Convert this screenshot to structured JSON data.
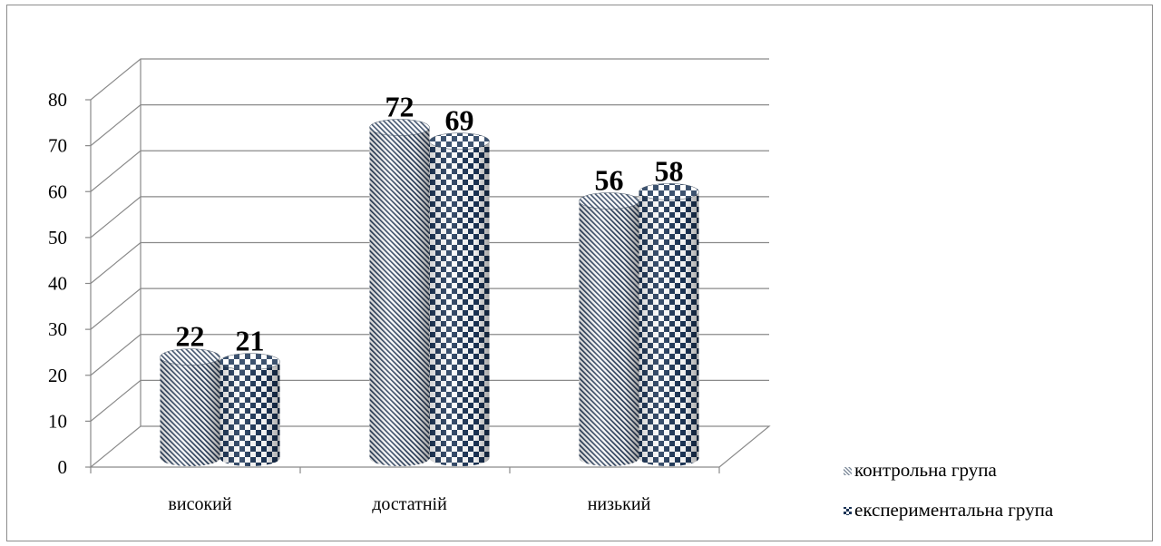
{
  "chart_data": {
    "type": "bar",
    "style": "3d-cylinder",
    "categories": [
      "високий",
      "достатній",
      "низький"
    ],
    "series": [
      {
        "name": "контрольна група",
        "values": [
          22,
          72,
          56
        ],
        "pattern": "diagonal-stripes",
        "color": "#1f3a5f"
      },
      {
        "name": "експериментальна група",
        "values": [
          21,
          69,
          58
        ],
        "pattern": "checkerboard",
        "color": "#1f3a5f"
      }
    ],
    "ylim": [
      0,
      80
    ],
    "yticks": [
      "0",
      "10",
      "20",
      "30",
      "40",
      "50",
      "60",
      "70",
      "80"
    ],
    "data_labels": true,
    "grid": true,
    "legend_position": "right-bottom",
    "title": "",
    "xlabel": "",
    "ylabel": ""
  }
}
